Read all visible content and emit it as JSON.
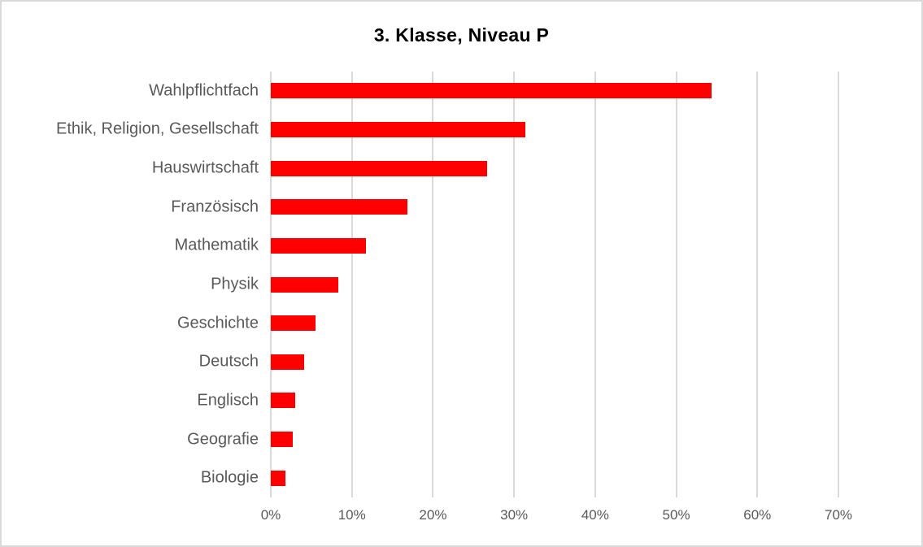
{
  "chart": {
    "title": "3. Klasse, Niveau P",
    "colors": {
      "bar": "#ff0000",
      "label": "#595959",
      "grid": "#d9d9d9",
      "border": "#d9d9d9",
      "title": "#000000",
      "background": "#ffffff"
    }
  },
  "chart_data": {
    "type": "bar",
    "orientation": "horizontal",
    "title": "3. Klasse, Niveau P",
    "categories": [
      "Wahlpflichtfach",
      "Ethik, Religion, Gesellschaft",
      "Hauswirtschaft",
      "Französisch",
      "Mathematik",
      "Physik",
      "Geschichte",
      "Deutsch",
      "Englisch",
      "Geografie",
      "Biologie"
    ],
    "values": [
      54.4,
      31.4,
      26.7,
      16.8,
      11.7,
      8.3,
      5.5,
      4.1,
      3.0,
      2.7,
      1.8
    ],
    "value_unit": "%",
    "xlabel": "",
    "ylabel": "",
    "xlim": [
      0,
      70
    ],
    "x_ticks": [
      "0%",
      "10%",
      "20%",
      "30%",
      "40%",
      "50%",
      "60%",
      "70%"
    ],
    "x_tick_values": [
      0,
      10,
      20,
      30,
      40,
      50,
      60,
      70
    ],
    "grid": true,
    "legend": false,
    "bars_sorted_descending": true
  }
}
